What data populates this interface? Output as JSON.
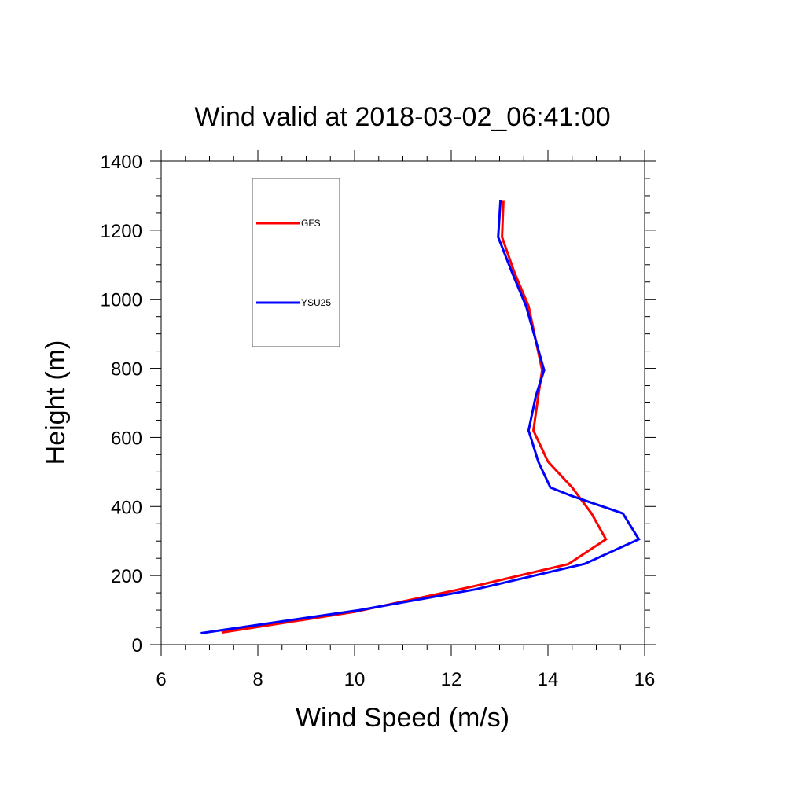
{
  "chart_data": {
    "type": "line",
    "title": "Wind valid at 2018-03-02_06:41:00",
    "xlabel": "Wind Speed (m/s)",
    "ylabel": "Height (m)",
    "xlim": [
      6,
      16
    ],
    "ylim": [
      0,
      1400
    ],
    "xticks": [
      "6",
      "8",
      "10",
      "12",
      "14",
      "16"
    ],
    "yticks": [
      "0",
      "200",
      "400",
      "600",
      "800",
      "1000",
      "1200",
      "1400"
    ],
    "grid": false,
    "legend": "top-left, inside plot",
    "series": [
      {
        "name": "GFS",
        "color": "#ff0000",
        "points": [
          [
            7.25,
            35
          ],
          [
            10.0,
            95
          ],
          [
            12.5,
            170
          ],
          [
            14.42,
            233
          ],
          [
            15.2,
            305
          ],
          [
            14.9,
            380
          ],
          [
            14.5,
            455
          ],
          [
            14.0,
            530
          ],
          [
            13.7,
            620
          ],
          [
            13.8,
            720
          ],
          [
            13.88,
            795
          ],
          [
            13.75,
            880
          ],
          [
            13.6,
            980
          ],
          [
            13.3,
            1080
          ],
          [
            13.05,
            1180
          ],
          [
            13.08,
            1285
          ]
        ]
      },
      {
        "name": "YSU25",
        "color": "#0000ff",
        "points": [
          [
            6.82,
            33
          ],
          [
            10.1,
            100
          ],
          [
            12.5,
            160
          ],
          [
            14.76,
            234
          ],
          [
            15.88,
            305
          ],
          [
            15.55,
            380
          ],
          [
            14.5,
            430
          ],
          [
            14.05,
            455
          ],
          [
            13.8,
            530
          ],
          [
            13.6,
            620
          ],
          [
            13.75,
            720
          ],
          [
            13.92,
            795
          ],
          [
            13.75,
            880
          ],
          [
            13.55,
            980
          ],
          [
            13.25,
            1080
          ],
          [
            12.97,
            1180
          ],
          [
            13.02,
            1288
          ]
        ]
      }
    ]
  }
}
